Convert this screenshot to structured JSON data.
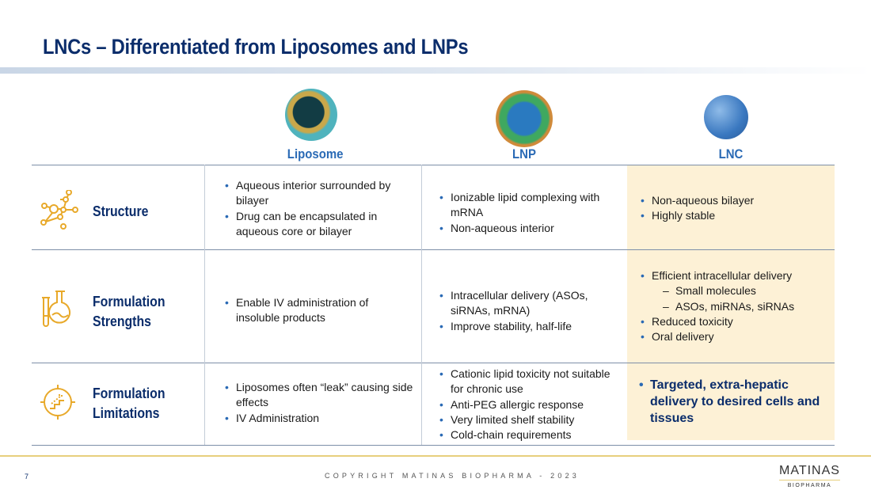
{
  "title": "LNCs – Differentiated from Liposomes and LNPs",
  "columns": [
    "Liposome",
    "LNP",
    "LNC"
  ],
  "rows": [
    {
      "label": [
        "Structure"
      ],
      "icon": "molecule-icon",
      "liposome": [
        "Aqueous interior surrounded by bilayer",
        "Drug can be encapsulated in aqueous core or bilayer"
      ],
      "lnp": [
        "Ionizable lipid complexing with mRNA",
        "Non-aqueous interior"
      ],
      "lnc": [
        "Non-aqueous bilayer",
        "Highly stable"
      ]
    },
    {
      "label": [
        "Formulation",
        "Strengths"
      ],
      "icon": "lab-flask-icon",
      "liposome": [
        "Enable IV administration of insoluble products"
      ],
      "lnp": [
        "Intracellular delivery (ASOs, siRNAs, mRNA)",
        "Improve stability, half-life"
      ],
      "lnc": [
        "Efficient intracellular delivery",
        "Small molecules",
        "ASOs, miRNAs, siRNAs",
        "Reduced toxicity",
        "Oral delivery"
      ]
    },
    {
      "label": [
        "Formulation",
        "Limitations"
      ],
      "icon": "target-stairs-icon",
      "liposome": [
        "Liposomes often “leak” causing side effects",
        "IV Administration"
      ],
      "lnp": [
        "Cationic lipid toxicity not suitable for chronic use",
        "Anti-PEG allergic response",
        "Very limited shelf stability",
        "Cold-chain requirements"
      ],
      "lnc": [
        "Targeted, extra-hepatic delivery to desired cells and tissues"
      ]
    }
  ],
  "footer": {
    "page": "7",
    "copyright": "COPYRIGHT MATINAS BIOPHARMA - 2023",
    "logo_main": "MATINAS",
    "logo_sub": "BIOPHARMA"
  },
  "colors": {
    "title": "#0b2d6b",
    "accent": "#2a6ab5",
    "icon": "#e8a92a",
    "lnc_highlight": "#fdf1d6"
  }
}
